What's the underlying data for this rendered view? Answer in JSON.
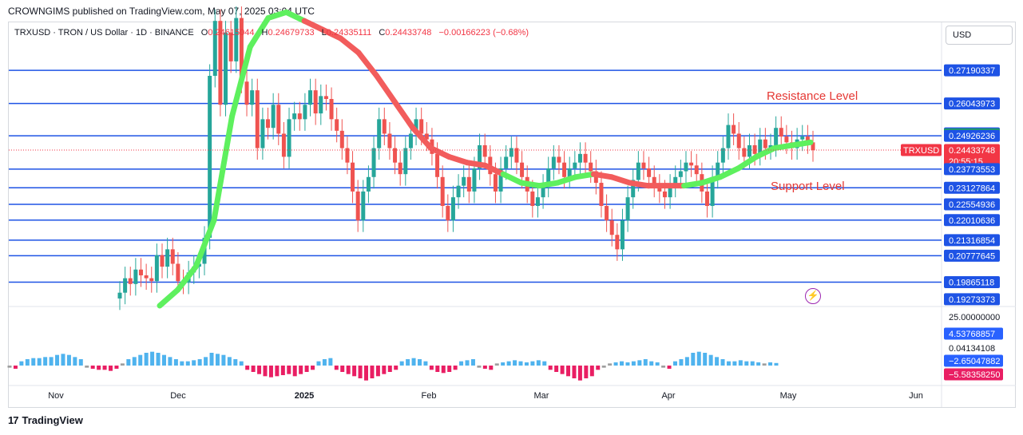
{
  "caption": "CROWNGIMS published on TradingView.com, May 07, 2025 03:04 UTC",
  "legend": {
    "symbol": "TRXUSD · TRON / US Dollar · 1D · BINANCE",
    "o_label": "O",
    "o_value": "0.24615044",
    "h_label": "H",
    "h_value": "0.24679733",
    "l_label": "L",
    "l_value": "0.24335111",
    "c_label": "C",
    "c_value": "0.24433748",
    "change": "−0.00166223 (−0.68%)"
  },
  "currency": "USD",
  "annotations": {
    "resistance": "Resistance Level",
    "support": "Support Level"
  },
  "footer": "TradingView",
  "colors": {
    "up": "#26a69a",
    "down": "#ef5350",
    "level_line": "#1e53e5",
    "ma_up": "#5ef05e",
    "ma_down": "#f25c5c",
    "hist_pos": "#4fb3ee",
    "hist_neg": "#e91e63",
    "hist_neutral": "#9e9e9e"
  },
  "chart_data": {
    "type": "candlestick",
    "symbol": "TRXUSD",
    "timeframe": "1D",
    "x_ticks": [
      "Nov",
      "Dec",
      "2025",
      "Feb",
      "Mar",
      "Apr",
      "May",
      "Jun"
    ],
    "price_range": [
      0.1905,
      0.2885
    ],
    "levels": [
      0.27190337,
      0.26043973,
      0.24926236,
      0.23773553,
      0.23127864,
      0.22554936,
      0.22010636,
      0.21316854,
      0.20777645,
      0.19865118
    ],
    "price_labels": [
      {
        "value": 0.27190337,
        "text": "0.27190337",
        "bg": "#1e53e5"
      },
      {
        "value": 0.26043973,
        "text": "0.26043973",
        "bg": "#1e53e5"
      },
      {
        "value": 0.25007922,
        "text": "0.25007922",
        "bg": "#1e53e5"
      },
      {
        "value": 0.2497287,
        "text": "0.24972870",
        "bg": "#22ab4b"
      },
      {
        "value": 0.24926236,
        "text": "0.24926236",
        "bg": "#1e53e5"
      },
      {
        "value": 0.24433748,
        "text": "0.24433748",
        "bg": "#f23645",
        "sub": "20:55:15"
      },
      {
        "value": 0.23773553,
        "text": "0.23773553",
        "bg": "#1e53e5"
      },
      {
        "value": 0.23127864,
        "text": "0.23127864",
        "bg": "#1e53e5"
      },
      {
        "value": 0.22554936,
        "text": "0.22554936",
        "bg": "#1e53e5"
      },
      {
        "value": 0.22010636,
        "text": "0.22010636",
        "bg": "#1e53e5"
      },
      {
        "value": 0.21316854,
        "text": "0.21316854",
        "bg": "#1e53e5"
      },
      {
        "value": 0.20777645,
        "text": "0.20777645",
        "bg": "#1e53e5"
      },
      {
        "value": 0.19865118,
        "text": "0.19865118",
        "bg": "#1e53e5"
      },
      {
        "value": 0.19273373,
        "text": "0.19273373",
        "bg": "#1e53e5"
      }
    ],
    "last_price_tag": "TRXUSD",
    "last_price": 0.24433748,
    "closes": [
      0.195,
      0.2,
      0.198,
      0.203,
      0.201,
      0.2,
      0.199,
      0.208,
      0.204,
      0.21,
      0.205,
      0.199,
      0.1985,
      0.202,
      0.204,
      0.205,
      0.214,
      0.27,
      0.289,
      0.26,
      0.285,
      0.275,
      0.29,
      0.268,
      0.26,
      0.265,
      0.245,
      0.255,
      0.252,
      0.26,
      0.25,
      0.242,
      0.255,
      0.257,
      0.255,
      0.26,
      0.265,
      0.257,
      0.263,
      0.262,
      0.255,
      0.251,
      0.245,
      0.24,
      0.23,
      0.22,
      0.23,
      0.235,
      0.245,
      0.255,
      0.25,
      0.245,
      0.24,
      0.236,
      0.245,
      0.25,
      0.255,
      0.25,
      0.248,
      0.243,
      0.235,
      0.225,
      0.22,
      0.228,
      0.232,
      0.235,
      0.23,
      0.238,
      0.246,
      0.242,
      0.236,
      0.23,
      0.238,
      0.242,
      0.245,
      0.24,
      0.235,
      0.23,
      0.225,
      0.228,
      0.232,
      0.238,
      0.242,
      0.24,
      0.235,
      0.238,
      0.24,
      0.243,
      0.24,
      0.237,
      0.233,
      0.225,
      0.22,
      0.215,
      0.21,
      0.22,
      0.228,
      0.234,
      0.24,
      0.238,
      0.235,
      0.232,
      0.23,
      0.228,
      0.232,
      0.235,
      0.237,
      0.24,
      0.239,
      0.236,
      0.23,
      0.225,
      0.235,
      0.24,
      0.245,
      0.253,
      0.25,
      0.245,
      0.242,
      0.246,
      0.243,
      0.248,
      0.245,
      0.246,
      0.252,
      0.249,
      0.247,
      0.245,
      0.248,
      0.249,
      0.247,
      0.2443
    ],
    "ma_path": [
      0.1905,
      0.196,
      0.204,
      0.22,
      0.256,
      0.28,
      0.29,
      0.292,
      0.289,
      0.286,
      0.283,
      0.278,
      0.27,
      0.261,
      0.252,
      0.245,
      0.242,
      0.24,
      0.239,
      0.236,
      0.233,
      0.232,
      0.233,
      0.235,
      0.236,
      0.235,
      0.233,
      0.232,
      0.232,
      0.232,
      0.233,
      0.235,
      0.238,
      0.242,
      0.245,
      0.246,
      0.247
    ],
    "ma_colors": [
      "up",
      "up",
      "up",
      "up",
      "up",
      "up",
      "up",
      "up",
      "down",
      "down",
      "down",
      "down",
      "down",
      "down",
      "down",
      "down",
      "down",
      "down",
      "down",
      "up",
      "up",
      "up",
      "up",
      "up",
      "down",
      "down",
      "down",
      "down",
      "down",
      "up",
      "up",
      "up",
      "up",
      "up",
      "up",
      "up",
      "up"
    ],
    "oscillator": {
      "range": [
        -7.5,
        27.0
      ],
      "labels": [
        {
          "value": 25.0,
          "text": "25.00000000",
          "bg": "",
          "fg": "#131722"
        },
        {
          "value": 4.53768857,
          "text": "4.53768857",
          "bg": "#2962ff",
          "fg": "#ffffff"
        },
        {
          "value": 0.04134108,
          "text": "0.04134108",
          "bg": "",
          "fg": "#131722"
        },
        {
          "value": -2.65047882,
          "text": "−2.65047882",
          "bg": "#2962ff",
          "fg": "#ffffff"
        },
        {
          "value": -5.5835825,
          "text": "−5.58358250",
          "bg": "#e91e63",
          "fg": "#ffffff"
        }
      ],
      "values": [
        -1,
        -1.5,
        2,
        3,
        3.5,
        3.5,
        4,
        4,
        5,
        5.5,
        5,
        4,
        3,
        -1,
        -1.5,
        -2,
        -2,
        -2.5,
        -1.5,
        1,
        3,
        4,
        5,
        6,
        6.5,
        6,
        5,
        4,
        3,
        2,
        2,
        2.5,
        3,
        4,
        6,
        5.5,
        5,
        4,
        3,
        2,
        -2,
        -3,
        -4,
        -5,
        -5.5,
        -5,
        -4.5,
        -4,
        -5,
        -4,
        -3,
        -2,
        2,
        3,
        3.5,
        -2,
        -3,
        -4,
        -5,
        -6,
        -7,
        -6,
        -5,
        -4,
        -3,
        -2,
        2,
        3,
        3.5,
        3,
        2,
        -2,
        -3,
        -3.5,
        -3,
        -2,
        2,
        2.5,
        3,
        -1,
        -1.5,
        -2,
        1,
        1.5,
        2,
        2.5,
        2,
        1.5,
        2,
        2.5,
        2,
        -2,
        -3,
        -4,
        -5,
        -6,
        -7,
        -6,
        -5,
        -2,
        -1,
        1,
        1.5,
        2,
        1.5,
        2,
        2.5,
        3,
        2,
        1.5,
        -1,
        -1.5,
        2,
        3,
        4,
        6,
        6.5,
        6,
        5,
        4,
        3,
        2,
        2,
        2.5,
        2,
        2,
        1.5,
        1,
        1.5,
        1.2
      ]
    }
  }
}
